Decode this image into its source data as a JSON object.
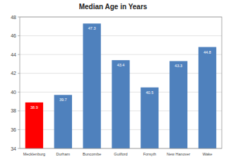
{
  "chart_data": {
    "type": "bar",
    "title": "Median Age in Years",
    "categories": [
      "Mecklenburg",
      "Durham",
      "Buncombe",
      "Guilford",
      "Forsyth",
      "New Hanover",
      "Wake"
    ],
    "values": [
      38.9,
      39.7,
      47.3,
      43.4,
      40.5,
      43.3,
      44.8
    ],
    "colors": [
      "#ff0000",
      "#4f81bd",
      "#4f81bd",
      "#4f81bd",
      "#4f81bd",
      "#4f81bd",
      "#4f81bd"
    ],
    "ylim": [
      34,
      48
    ],
    "yticks": [
      34,
      36,
      38,
      40,
      42,
      44,
      46,
      48
    ],
    "grid": true,
    "data_labels": true
  }
}
